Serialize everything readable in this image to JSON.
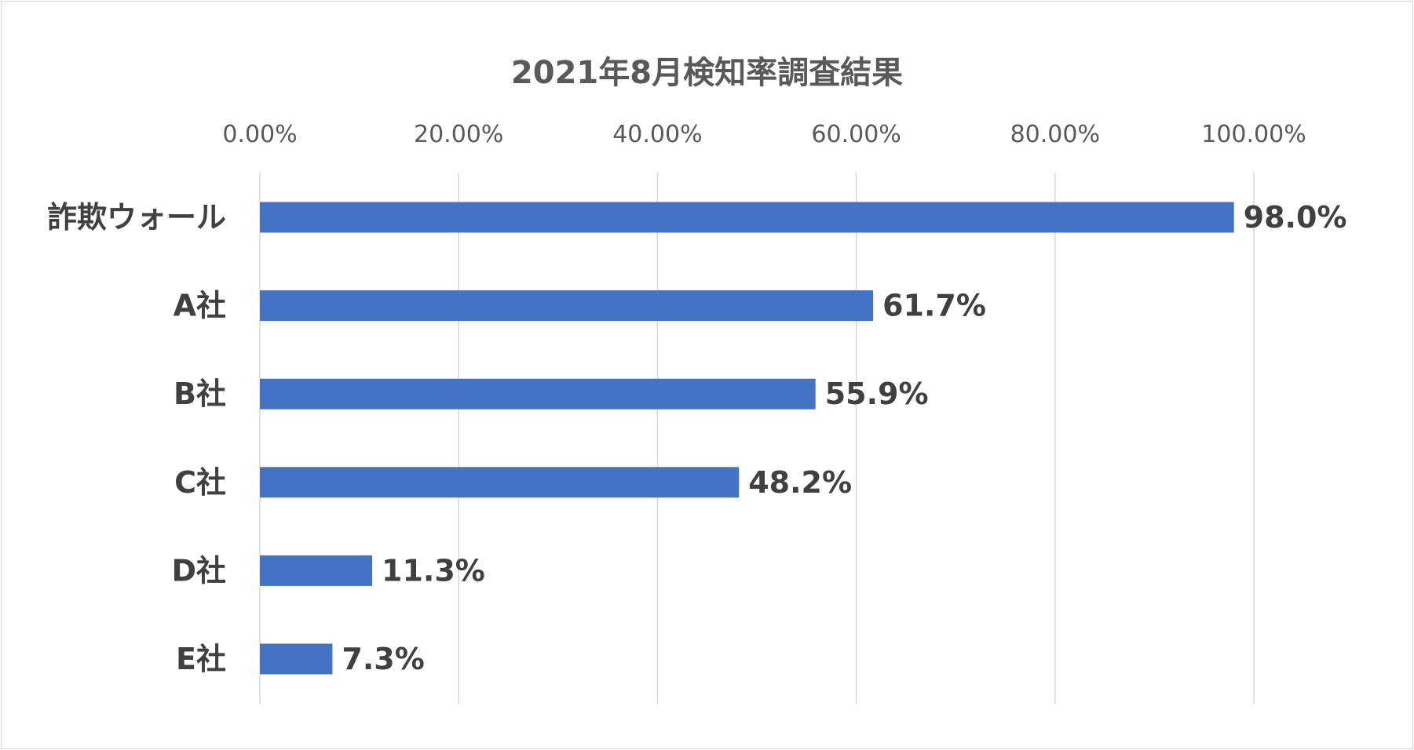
{
  "chart_data": {
    "type": "bar",
    "orientation": "horizontal",
    "title": "2021年8月検知率調査結果",
    "categories": [
      "詐欺ウォール",
      "A社",
      "B社",
      "C社",
      "D社",
      "E社"
    ],
    "values": [
      98.0,
      61.7,
      55.9,
      48.2,
      11.3,
      7.3
    ],
    "value_labels": [
      "98.0%",
      "61.7%",
      "55.9%",
      "48.2%",
      "11.3%",
      "7.3%"
    ],
    "xlim": [
      0,
      100
    ],
    "x_ticks": [
      0,
      20,
      40,
      60,
      80,
      100
    ],
    "x_tick_labels": [
      "0.00%",
      "20.00%",
      "40.00%",
      "60.00%",
      "80.00%",
      "100.00%"
    ],
    "x_axis_position": "top",
    "grid": true,
    "legend": "none",
    "bar_color": "#4472C4",
    "gridline_color": "#d9d9d9"
  }
}
